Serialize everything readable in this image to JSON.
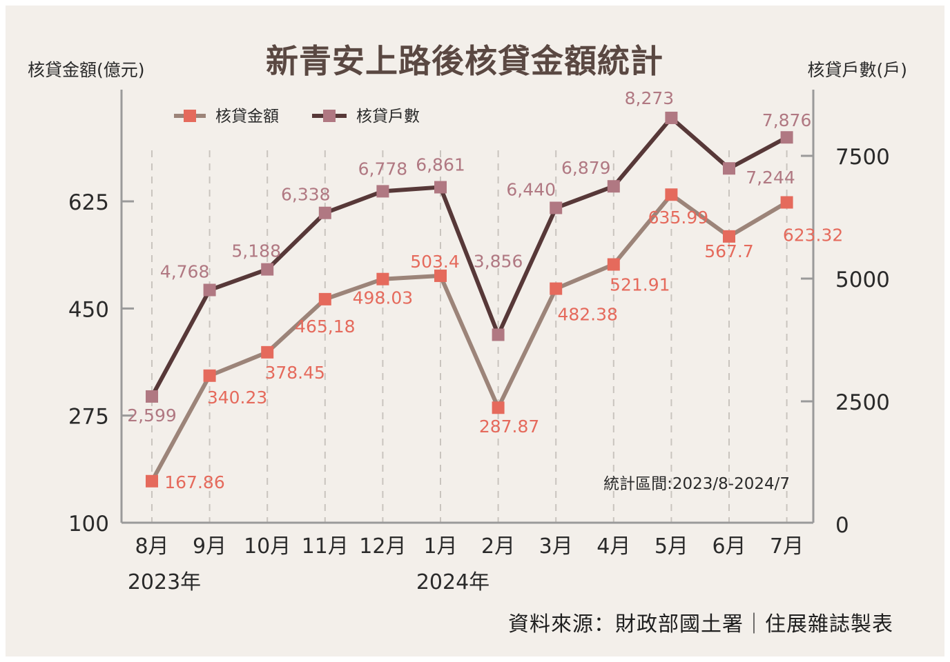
{
  "title": "新青安上路後核貸金額統計",
  "left_axis_title": "核貸金額(億元)",
  "right_axis_title": "核貸戶數(戶)",
  "period_note": "統計區間:2023/8-2024/7",
  "source_note": "資料來源：財政部國土署｜住展雜誌製表",
  "colors": {
    "background": "#f3efea",
    "amount_line": "#9c8479",
    "amount_marker": "#e56a5c",
    "amount_label": "#e56a5c",
    "count_line": "#573838",
    "count_marker": "#b07882",
    "count_label": "#b07882",
    "axis": "#9a9a9a",
    "grid": "#c9c4be"
  },
  "chart_data": {
    "type": "line",
    "categories": [
      "8月",
      "9月",
      "10月",
      "11月",
      "12月",
      "1月",
      "2月",
      "3月",
      "4月",
      "5月",
      "6月",
      "7月"
    ],
    "year_labels": [
      {
        "index": 0,
        "text": "2023年"
      },
      {
        "index": 5,
        "text": "2024年"
      }
    ],
    "left_axis": {
      "ticks": [
        "625",
        "450",
        "275",
        "100"
      ],
      "tick_values": [
        625,
        450,
        275,
        100
      ],
      "ylim": [
        100,
        850
      ]
    },
    "right_axis": {
      "ticks": [
        "7500",
        "5000",
        "2500",
        "0"
      ],
      "tick_values": [
        7500,
        5000,
        2500,
        0
      ],
      "ylim": [
        0,
        9400
      ]
    },
    "grid": "vertical-dashed",
    "legend_position": "top-left",
    "series": [
      {
        "name": "核貸金額",
        "axis": "left",
        "values": [
          167.86,
          340.23,
          378.45,
          465.18,
          498.03,
          503.4,
          287.87,
          482.38,
          521.91,
          635.99,
          567.7,
          623.32
        ],
        "labels": [
          "167.86",
          "340.23",
          "378.45",
          "465,18",
          "498.03",
          "503.4",
          "287.87",
          "482.38",
          "521.91",
          "635.99",
          "567.7",
          "623.32"
        ]
      },
      {
        "name": "核貸戶數",
        "axis": "right",
        "values": [
          2599,
          4768,
          5188,
          6338,
          6778,
          6861,
          3856,
          6440,
          6879,
          8273,
          7244,
          7876
        ],
        "labels": [
          "2,599",
          "4,768",
          "5,188",
          "6,338",
          "6,778",
          "6,861",
          "3,856",
          "6,440",
          "6,879",
          "8,273",
          "7,244",
          "7,876"
        ]
      }
    ]
  }
}
